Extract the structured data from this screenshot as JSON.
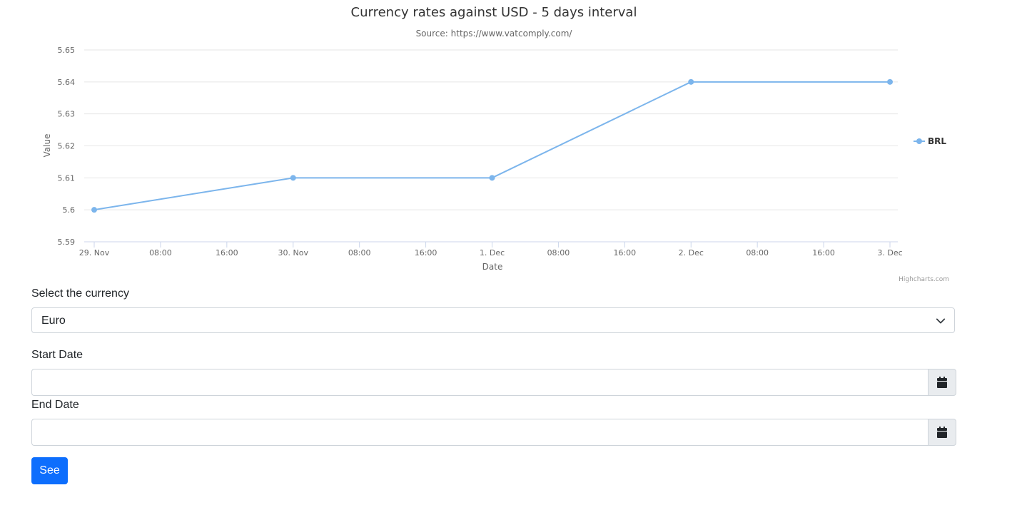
{
  "chart_data": {
    "type": "line",
    "title": "Currency rates against USD - 5 days interval",
    "subtitle": "Source: https://www.vatcomply.com/",
    "xlabel": "Date",
    "ylabel": "Value",
    "x": [
      "29. Nov",
      "30. Nov",
      "1. Dec",
      "2. Dec",
      "3. Dec"
    ],
    "x_ticks": [
      "29. Nov",
      "08:00",
      "16:00",
      "30. Nov",
      "08:00",
      "16:00",
      "1. Dec",
      "08:00",
      "16:00",
      "2. Dec",
      "08:00",
      "16:00",
      "3. Dec"
    ],
    "y_ticks": [
      "5.59",
      "5.6",
      "5.61",
      "5.62",
      "5.63",
      "5.64",
      "5.65"
    ],
    "ylim": [
      5.59,
      5.65
    ],
    "series": [
      {
        "name": "BRL",
        "color": "#7cb5ec",
        "values": [
          5.6,
          5.61,
          5.61,
          5.64,
          5.64
        ]
      }
    ],
    "legend_position": "right",
    "grid": true,
    "credits": "Highcharts.com"
  },
  "form": {
    "currency_label": "Select the currency",
    "currency_value": "Euro",
    "start_label": "Start Date",
    "start_value": "",
    "end_label": "End Date",
    "end_value": "",
    "submit_label": "See"
  },
  "icons": {
    "select": "chevron-down-icon",
    "date": "calendar-icon"
  }
}
